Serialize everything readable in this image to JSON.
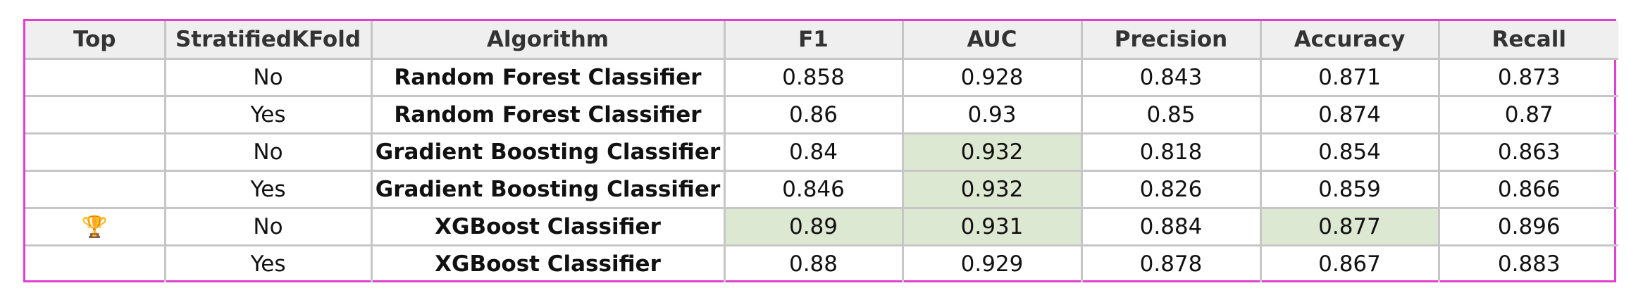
{
  "table": {
    "headers": [
      "Top",
      "StratifiedKFold",
      "Algorithm",
      "F1",
      "AUC",
      "Precision",
      "Accuracy",
      "Recall"
    ],
    "rows": [
      {
        "top": "",
        "top_icon": "",
        "skf": "No",
        "algorithm": "Random Forest Classifier",
        "f1": "0.858",
        "auc": "0.928",
        "precision": "0.843",
        "accuracy": "0.871",
        "recall": "0.873"
      },
      {
        "top": "",
        "top_icon": "",
        "skf": "Yes",
        "algorithm": "Random Forest Classifier",
        "f1": "0.86",
        "auc": "0.93",
        "precision": "0.85",
        "accuracy": "0.874",
        "recall": "0.87"
      },
      {
        "top": "",
        "top_icon": "",
        "skf": "No",
        "algorithm": "Gradient Boosting Classifier",
        "f1": "0.84",
        "auc": "0.932",
        "precision": "0.818",
        "accuracy": "0.854",
        "recall": "0.863"
      },
      {
        "top": "",
        "top_icon": "",
        "skf": "Yes",
        "algorithm": "Gradient Boosting Classifier",
        "f1": "0.846",
        "auc": "0.932",
        "precision": "0.826",
        "accuracy": "0.859",
        "recall": "0.866"
      },
      {
        "top": "🏆",
        "top_icon": "trophy-icon",
        "skf": "No",
        "algorithm": "XGBoost Classifier",
        "f1": "0.89",
        "auc": "0.931",
        "precision": "0.884",
        "accuracy": "0.877",
        "recall": "0.896"
      },
      {
        "top": "",
        "top_icon": "",
        "skf": "Yes",
        "algorithm": "XGBoost Classifier",
        "f1": "0.88",
        "auc": "0.929",
        "precision": "0.878",
        "accuracy": "0.867",
        "recall": "0.883"
      }
    ],
    "highlighted_cells": [
      {
        "row": 2,
        "column": "AUC"
      },
      {
        "row": 3,
        "column": "AUC"
      },
      {
        "row": 4,
        "column": "F1"
      },
      {
        "row": 4,
        "column": "AUC"
      },
      {
        "row": 4,
        "column": "Accuracy"
      }
    ]
  },
  "colors": {
    "frame_border": "#e23fcf",
    "header_background": "#efefef",
    "grid_lines": "#c6c6c6",
    "highlight_background": "#dde8d3",
    "algorithm_text": "#666666"
  }
}
